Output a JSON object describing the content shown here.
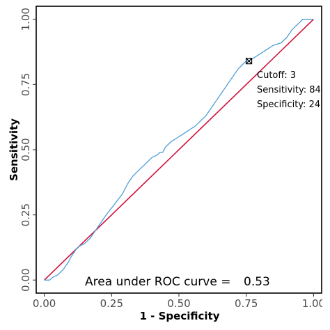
{
  "chart_data": {
    "type": "line",
    "xlabel": "1 - Specificity",
    "ylabel": "Sensitivity",
    "xlim": [
      -0.03,
      1.03
    ],
    "ylim": [
      -0.05,
      1.05
    ],
    "x_ticks": [
      0.0,
      0.25,
      0.5,
      0.75,
      1.0
    ],
    "x_tick_labels": [
      "0.00",
      "0.25",
      "0.50",
      "0.75",
      "1.00"
    ],
    "y_ticks": [
      0.0,
      0.25,
      0.5,
      0.75,
      1.0
    ],
    "y_tick_labels": [
      "0.00",
      "0.25",
      "0.50",
      "0.75",
      "1.00"
    ],
    "grid": false,
    "roc_color": "#4f9fd9",
    "diagonal_color": "#d0103a",
    "series": [
      {
        "x": [
          0.0,
          0.01,
          0.02,
          0.03,
          0.05,
          0.07,
          0.09,
          0.1,
          0.12,
          0.13,
          0.15,
          0.17,
          0.19,
          0.21,
          0.23,
          0.26,
          0.29,
          0.31,
          0.33,
          0.34,
          0.36,
          0.38,
          0.4,
          0.42,
          0.43,
          0.44,
          0.45,
          0.45,
          0.47,
          0.5,
          0.53,
          0.56,
          0.58,
          0.6,
          0.62,
          0.64,
          0.66,
          0.68,
          0.7,
          0.72,
          0.74,
          0.75,
          0.76,
          0.79,
          0.82,
          0.85,
          0.88,
          0.9,
          0.92,
          0.94,
          0.95,
          0.96,
          0.98,
          1.0,
          1.0
        ],
        "y": [
          0.0,
          0.0,
          0.0,
          0.01,
          0.02,
          0.04,
          0.07,
          0.09,
          0.12,
          0.13,
          0.14,
          0.16,
          0.19,
          0.22,
          0.25,
          0.29,
          0.33,
          0.37,
          0.4,
          0.41,
          0.43,
          0.45,
          0.47,
          0.48,
          0.49,
          0.49,
          0.51,
          0.51,
          0.53,
          0.55,
          0.57,
          0.59,
          0.61,
          0.63,
          0.66,
          0.69,
          0.72,
          0.75,
          0.78,
          0.81,
          0.83,
          0.84,
          0.84,
          0.86,
          0.88,
          0.9,
          0.91,
          0.93,
          0.96,
          0.98,
          0.99,
          1.0,
          1.0,
          1.0,
          1.0
        ]
      }
    ],
    "cutoff_point": {
      "x": 0.76,
      "y": 0.84
    },
    "annotations": [
      "Cutoff: 3",
      "Sensitivity: 84",
      "Specificity: 24"
    ],
    "auc_label": "Area under ROC curve =",
    "auc_value": "0.53"
  }
}
